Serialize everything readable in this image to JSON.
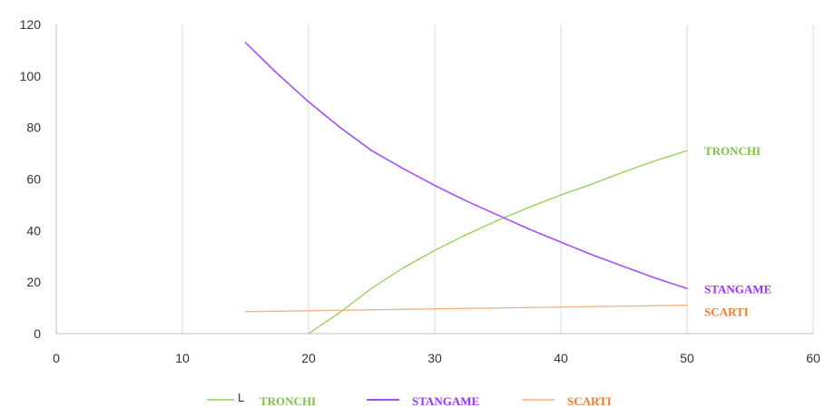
{
  "chart_data": {
    "type": "line",
    "title": "",
    "xlabel": "",
    "ylabel": "",
    "xlim": [
      0,
      60
    ],
    "ylim": [
      0,
      120
    ],
    "x_ticks": [
      "0",
      "10",
      "20",
      "30",
      "40",
      "50",
      "60"
    ],
    "y_ticks": [
      "0",
      "20",
      "40",
      "60",
      "80",
      "100",
      "120"
    ],
    "grid": "vertical gridlines",
    "legend_position": "bottom",
    "series": [
      {
        "name": "TRONCHI",
        "color": "#92d050",
        "label_color": "#7dc242",
        "x": [
          20,
          22.5,
          25,
          27.5,
          30,
          32.5,
          35,
          37.5,
          40,
          42.5,
          45,
          47.5,
          50
        ],
        "y": [
          0,
          8.3,
          17.6,
          25.5,
          32.3,
          38.4,
          44,
          49.1,
          53.8,
          58.1,
          62.8,
          67.1,
          71
        ]
      },
      {
        "name": "STANGAME",
        "color": "#a64dff",
        "label_color": "#9b30ff",
        "x": [
          15,
          17.5,
          20,
          22.5,
          25,
          27.5,
          30,
          32.5,
          35,
          37.5,
          40,
          42.5,
          45,
          47.5,
          50
        ],
        "y": [
          113,
          101,
          90,
          80,
          71,
          64,
          57.5,
          51.5,
          46,
          40.5,
          35.5,
          30.5,
          26,
          21.5,
          17.5
        ]
      },
      {
        "name": "SCARTI",
        "color": "#f4b183",
        "label_color": "#ed7d31",
        "x": [
          15,
          50
        ],
        "y": [
          8.5,
          11
        ]
      }
    ],
    "legend": [
      {
        "series": "TRONCHI",
        "prefix": "L",
        "color": "#92d050",
        "label_color": "#7dc242"
      },
      {
        "series": "STANGAME",
        "prefix": "",
        "color": "#a64dff",
        "label_color": "#9b30ff"
      },
      {
        "series": "SCARTI",
        "prefix": "",
        "color": "#f4b183",
        "label_color": "#ed7d31"
      }
    ]
  }
}
